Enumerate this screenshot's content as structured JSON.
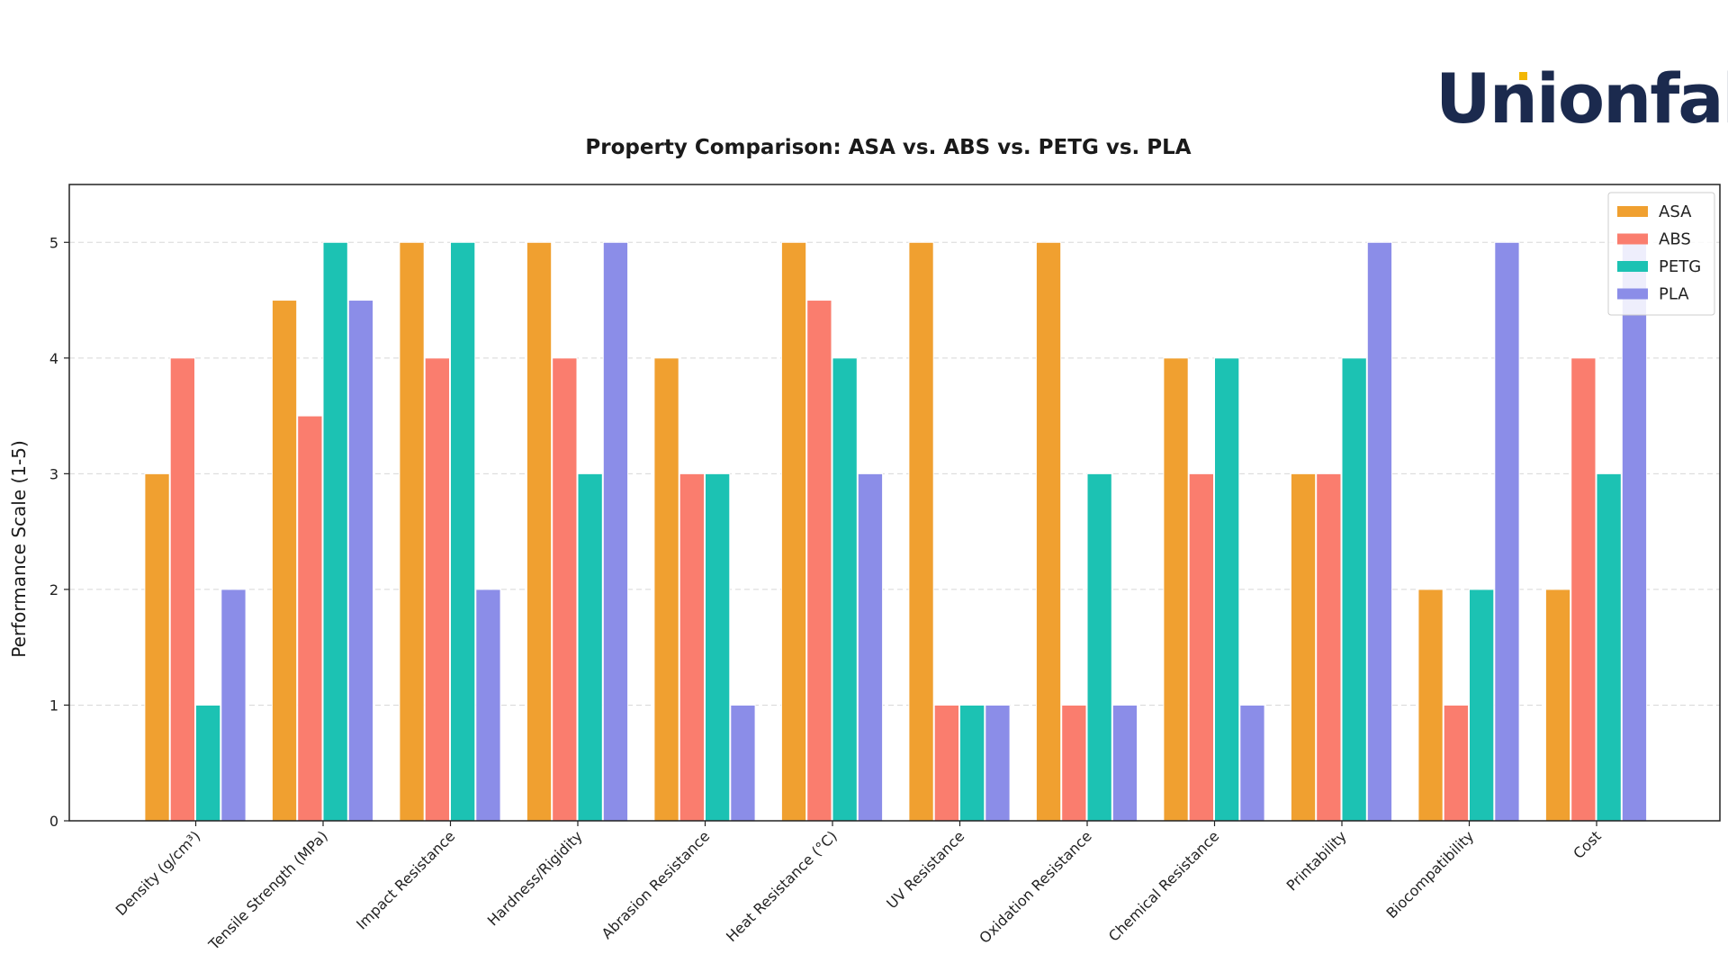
{
  "brand": {
    "name": "Unionfab",
    "color": "#1b2a4e",
    "accent": "#f2b705"
  },
  "chart_data": {
    "type": "bar",
    "title": "Property Comparison: ASA vs. ABS vs. PETG vs. PLA",
    "xlabel": "",
    "ylabel": "Performance Scale (1-5)",
    "ylim": [
      0,
      5.5
    ],
    "yticks": [
      0,
      1,
      2,
      3,
      4,
      5
    ],
    "grid": true,
    "legend_position": "top-right",
    "categories": [
      "Density (g/cm³)",
      "Tensile Strength (MPa)",
      "Impact Resistance",
      "Hardness/Rigidity",
      "Abrasion Resistance",
      "Heat Resistance (°C)",
      "UV Resistance",
      "Oxidation Resistance",
      "Chemical Resistance",
      "Printability",
      "Biocompatibility",
      "Cost"
    ],
    "series": [
      {
        "name": "ASA",
        "color": "#f0a030",
        "values": [
          3,
          4.5,
          5,
          5,
          4,
          5,
          5,
          5,
          4,
          3,
          2,
          2
        ]
      },
      {
        "name": "ABS",
        "color": "#fa7d6e",
        "values": [
          4,
          3.5,
          4,
          4,
          3,
          4.5,
          1,
          1,
          3,
          3,
          1,
          4
        ]
      },
      {
        "name": "PETG",
        "color": "#1cc2b3",
        "values": [
          1,
          5,
          5,
          3,
          3,
          4,
          1,
          3,
          4,
          4,
          2,
          3
        ]
      },
      {
        "name": "PLA",
        "color": "#8b8de8",
        "values": [
          2,
          4.5,
          2,
          5,
          1,
          3,
          1,
          1,
          1,
          5,
          5,
          5
        ]
      }
    ]
  }
}
